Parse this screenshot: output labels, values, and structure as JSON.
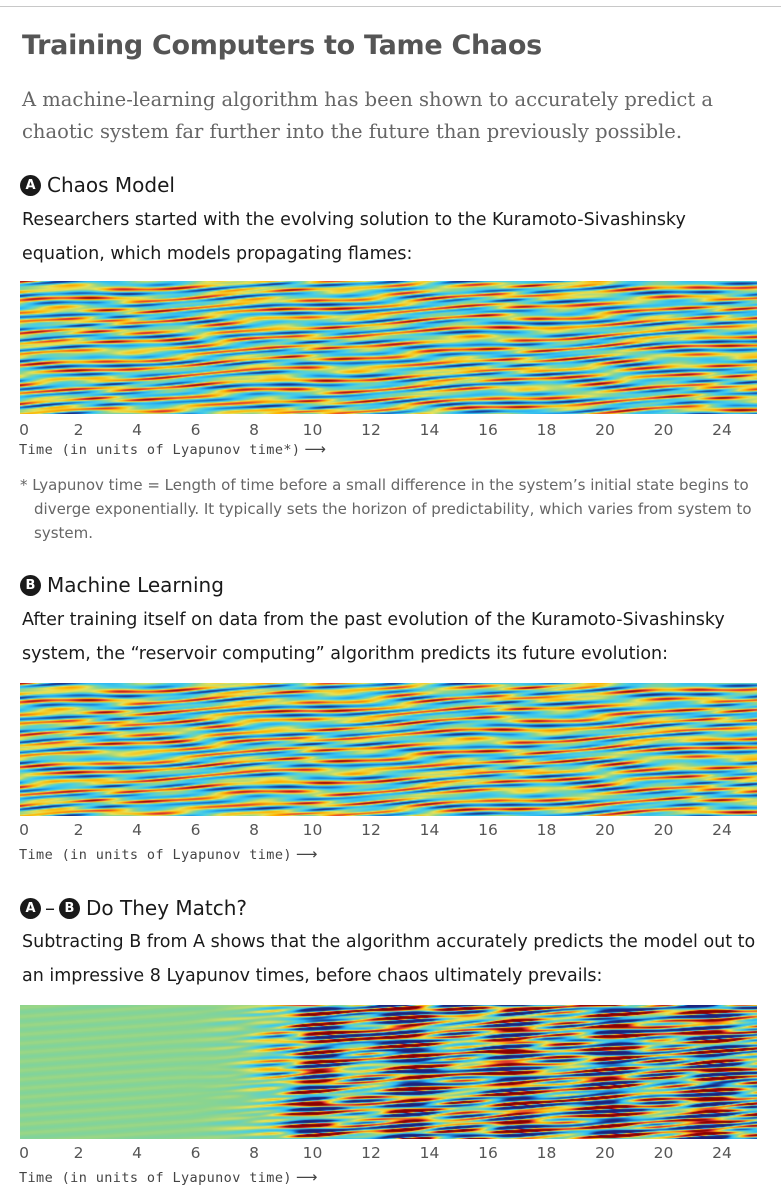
{
  "header": {
    "title": "Training Computers to Tame Chaos",
    "subtitle": "A machine-learning algorithm has been shown to accurately predict a chaotic system far further into the future than previously possible."
  },
  "sections": [
    {
      "badge": "A",
      "label": "Chaos Model",
      "description": "Researchers started with the evolving solution to the Kuramoto-Sivashinsky equation, which models propagating flames:",
      "axis_label": "Time (in units of Lyapunov time*)"
    },
    {
      "badge": "B",
      "label": "Machine Learning",
      "description": "After training itself on data from the past evolution of the Kuramoto-Sivashinsky system, the “reservoir computing” algorithm predicts its future evolution:",
      "axis_label": "Time (in units of Lyapunov time)"
    },
    {
      "badge_left": "A",
      "dash": "–",
      "badge_right": "B",
      "label": "Do They Match?",
      "description": "Subtracting B from A shows that the algorithm accurately predicts the model out to an impressive 8 Lyapunov times, before chaos ultimately prevails:",
      "axis_label": "Time (in units of Lyapunov time)"
    }
  ],
  "footnote": "* Lyapunov time = Length of time before a small difference in the system’s initial state begins to diverge exponentially. It typically sets the horizon of predictability, which varies from system to system.",
  "chart_data": [
    {
      "type": "heatmap",
      "panel": "A",
      "x_ticks": [
        "0",
        "2",
        "4",
        "6",
        "8",
        "10",
        "12",
        "14",
        "16",
        "18",
        "20",
        "20",
        "24"
      ],
      "xlim": [
        0,
        25
      ],
      "xlabel": "Time (in units of Lyapunov time*)",
      "colormap": [
        "#1a237e",
        "#1565c0",
        "#29b6f6",
        "#4dd0e1",
        "#8bd48f",
        "#e8e356",
        "#ffb300",
        "#e53935",
        "#8b0000"
      ]
    },
    {
      "type": "heatmap",
      "panel": "B",
      "x_ticks": [
        "0",
        "2",
        "4",
        "6",
        "8",
        "10",
        "12",
        "14",
        "16",
        "18",
        "20",
        "20",
        "24"
      ],
      "xlim": [
        0,
        25
      ],
      "xlabel": "Time (in units of Lyapunov time)",
      "colormap": [
        "#1a237e",
        "#1565c0",
        "#29b6f6",
        "#4dd0e1",
        "#8bd48f",
        "#e8e356",
        "#ffb300",
        "#e53935",
        "#8b0000"
      ]
    },
    {
      "type": "heatmap",
      "panel": "A-B",
      "x_ticks": [
        "0",
        "2",
        "4",
        "6",
        "8",
        "10",
        "12",
        "14",
        "16",
        "18",
        "20",
        "20",
        "24"
      ],
      "xlim": [
        0,
        25
      ],
      "xlabel": "Time (in units of Lyapunov time)",
      "match_until": 8,
      "colormap": [
        "#1a237e",
        "#1565c0",
        "#29b6f6",
        "#4dd0e1",
        "#8bd48f",
        "#e8e356",
        "#ffb300",
        "#e53935",
        "#8b0000"
      ]
    }
  ]
}
